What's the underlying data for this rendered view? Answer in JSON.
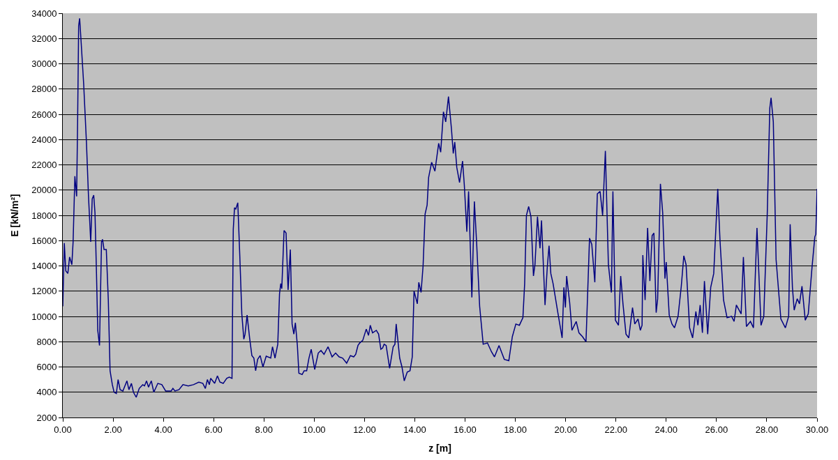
{
  "chart_data": {
    "type": "line",
    "xlabel": "z [m]",
    "ylabel": "E [kN/m²]",
    "xlim": [
      0,
      30
    ],
    "xticks": [
      {
        "value": 0,
        "label": "0.00"
      },
      {
        "value": 2,
        "label": "2.00"
      },
      {
        "value": 4,
        "label": "4.00"
      },
      {
        "value": 6,
        "label": "6.00"
      },
      {
        "value": 8,
        "label": "8.00"
      },
      {
        "value": 10,
        "label": "10.00"
      },
      {
        "value": 12,
        "label": "12.00"
      },
      {
        "value": 14,
        "label": "14.00"
      },
      {
        "value": 16,
        "label": "16.00"
      },
      {
        "value": 18,
        "label": "18.00"
      },
      {
        "value": 20,
        "label": "20.00"
      },
      {
        "value": 22,
        "label": "22.00"
      },
      {
        "value": 24,
        "label": "24.00"
      },
      {
        "value": 26,
        "label": "26.00"
      },
      {
        "value": 28,
        "label": "28.00"
      },
      {
        "value": 30,
        "label": "30.00"
      }
    ],
    "ylim": [
      2000,
      34000
    ],
    "yticks": [
      2000,
      4000,
      6000,
      8000,
      10000,
      12000,
      14000,
      16000,
      18000,
      20000,
      22000,
      24000,
      26000,
      28000,
      30000,
      32000,
      34000
    ],
    "grid": "y",
    "marker": "none",
    "line_style": "solid",
    "series": [
      {
        "color": "#000080",
        "x": [
          0,
          0.06,
          0.12,
          0.2,
          0.27,
          0.36,
          0.41,
          0.48,
          0.55,
          0.59,
          0.63,
          0.67,
          0.73,
          0.83,
          0.94,
          1.02,
          1.11,
          1.17,
          1.23,
          1.28,
          1.34,
          1.39,
          1.46,
          1.54,
          1.58,
          1.64,
          1.73,
          1.81,
          1.88,
          1.97,
          2.04,
          2.13,
          2.2,
          2.28,
          2.39,
          2.55,
          2.63,
          2.73,
          2.81,
          2.92,
          3.04,
          3.18,
          3.25,
          3.33,
          3.41,
          3.52,
          3.62,
          3.78,
          3.94,
          4.09,
          4.31,
          4.38,
          4.46,
          4.62,
          4.78,
          4.99,
          5.2,
          5.41,
          5.57,
          5.67,
          5.75,
          5.83,
          5.88,
          6.04,
          6.15,
          6.25,
          6.38,
          6.52,
          6.62,
          6.73,
          6.78,
          6.83,
          6.88,
          6.96,
          7.04,
          7.12,
          7.2,
          7.25,
          7.33,
          7.43,
          7.52,
          7.6,
          7.67,
          7.75,
          7.85,
          7.96,
          8.09,
          8.27,
          8.34,
          8.44,
          8.55,
          8.62,
          8.67,
          8.71,
          8.8,
          8.88,
          8.96,
          9.05,
          9.12,
          9.19,
          9.25,
          9.33,
          9.39,
          9.52,
          9.6,
          9.7,
          9.79,
          9.88,
          10.02,
          10.16,
          10.27,
          10.39,
          10.55,
          10.71,
          10.85,
          10.99,
          11.13,
          11.29,
          11.44,
          11.57,
          11.65,
          11.74,
          11.81,
          11.93,
          12.07,
          12.16,
          12.23,
          12.32,
          12.47,
          12.56,
          12.65,
          12.72,
          12.78,
          12.86,
          13.0,
          13.14,
          13.21,
          13.26,
          13.4,
          13.49,
          13.58,
          13.7,
          13.81,
          13.9,
          13.97,
          14.05,
          14.1,
          14.16,
          14.25,
          14.33,
          14.41,
          14.49,
          14.55,
          14.67,
          14.8,
          14.95,
          15.03,
          15.14,
          15.23,
          15.34,
          15.46,
          15.53,
          15.59,
          15.67,
          15.78,
          15.9,
          15.97,
          16.07,
          16.14,
          16.27,
          16.37,
          16.46,
          16.58,
          16.72,
          16.89,
          17.05,
          17.17,
          17.35,
          17.56,
          17.74,
          17.88,
          18.02,
          18.16,
          18.3,
          18.37,
          18.44,
          18.53,
          18.62,
          18.72,
          18.78,
          18.88,
          18.98,
          19.04,
          19.18,
          19.27,
          19.34,
          19.41,
          19.5,
          19.69,
          19.86,
          19.93,
          19.99,
          20.04,
          20.16,
          20.25,
          20.42,
          20.53,
          20.67,
          20.81,
          20.95,
          21.04,
          21.16,
          21.26,
          21.37,
          21.47,
          21.58,
          21.7,
          21.82,
          21.88,
          21.98,
          22.1,
          22.19,
          22.28,
          22.4,
          22.51,
          22.66,
          22.75,
          22.88,
          22.97,
          23.04,
          23.07,
          23.16,
          23.26,
          23.35,
          23.44,
          23.51,
          23.6,
          23.66,
          23.77,
          23.86,
          23.95,
          24.0,
          24.12,
          24.23,
          24.33,
          24.47,
          24.6,
          24.7,
          24.79,
          24.93,
          25.05,
          25.18,
          25.26,
          25.35,
          25.44,
          25.52,
          25.65,
          25.77,
          25.89,
          26.05,
          26.14,
          26.28,
          26.42,
          26.6,
          26.7,
          26.79,
          26.98,
          27.07,
          27.19,
          27.35,
          27.47,
          27.61,
          27.77,
          27.88,
          28.02,
          28.12,
          28.17,
          28.26,
          28.37,
          28.56,
          28.74,
          28.87,
          28.93,
          29.02,
          29.09,
          29.21,
          29.3,
          29.4,
          29.53,
          29.65,
          29.8,
          29.91,
          29.95,
          30.0
        ],
        "values": [
          10800,
          15800,
          13600,
          13400,
          14700,
          14100,
          15900,
          21100,
          19500,
          25500,
          33000,
          33600,
          31700,
          28400,
          23800,
          19600,
          15900,
          19300,
          19600,
          18200,
          13400,
          8900,
          7700,
          15900,
          16100,
          15300,
          15300,
          11300,
          5700,
          4600,
          4000,
          3900,
          5000,
          4200,
          4100,
          4900,
          4200,
          4700,
          4000,
          3600,
          4300,
          4600,
          4500,
          4900,
          4400,
          4900,
          4000,
          4700,
          4600,
          4100,
          4100,
          4300,
          4100,
          4200,
          4600,
          4500,
          4600,
          4800,
          4700,
          4300,
          5000,
          4600,
          5100,
          4700,
          5300,
          4800,
          4700,
          5100,
          5200,
          5100,
          16900,
          18600,
          18500,
          19000,
          14800,
          10200,
          8200,
          8600,
          10100,
          8300,
          6900,
          6700,
          5700,
          6600,
          6900,
          6000,
          6850,
          6700,
          7600,
          6700,
          7800,
          11800,
          12600,
          12200,
          16800,
          16600,
          12100,
          15300,
          9400,
          8600,
          9500,
          7700,
          5500,
          5400,
          5700,
          5700,
          6700,
          7400,
          5800,
          7100,
          7300,
          7000,
          7600,
          6800,
          7100,
          6800,
          6700,
          6300,
          6900,
          6800,
          7000,
          7700,
          7900,
          8100,
          9000,
          8500,
          9300,
          8700,
          8900,
          8600,
          7400,
          7500,
          7800,
          7700,
          5900,
          7600,
          7800,
          9400,
          6700,
          6000,
          4900,
          5600,
          5700,
          6800,
          12000,
          11400,
          11000,
          12700,
          11900,
          14000,
          18100,
          18800,
          21000,
          22200,
          21500,
          23700,
          23000,
          26200,
          25400,
          27400,
          24800,
          22900,
          23800,
          21800,
          20600,
          22300,
          20400,
          16700,
          19900,
          11500,
          19100,
          15800,
          10800,
          7800,
          7900,
          7200,
          6800,
          7700,
          6600,
          6500,
          8400,
          9400,
          9300,
          9900,
          12600,
          18000,
          18700,
          17900,
          13200,
          14100,
          17900,
          15400,
          17600,
          10900,
          13900,
          15600,
          13400,
          12600,
          10300,
          8300,
          12300,
          10700,
          13200,
          11100,
          8900,
          9600,
          8700,
          8400,
          8000,
          16200,
          15700,
          12700,
          19700,
          19900,
          18000,
          23100,
          14100,
          11900,
          19900,
          9700,
          9300,
          13200,
          11000,
          8600,
          8300,
          10700,
          9400,
          9800,
          8900,
          9300,
          14850,
          11300,
          17000,
          12800,
          16400,
          16600,
          10300,
          11400,
          20500,
          18200,
          13000,
          14300,
          10100,
          9400,
          9100,
          10000,
          12400,
          14800,
          14100,
          9100,
          8300,
          10400,
          9300,
          10900,
          8700,
          12800,
          8600,
          12300,
          13400,
          20100,
          16000,
          11300,
          9900,
          10000,
          9600,
          10900,
          10200,
          14700,
          9200,
          9600,
          9100,
          17000,
          9300,
          10000,
          18200,
          26500,
          27300,
          25400,
          14500,
          9800,
          9100,
          10000,
          17300,
          12300,
          10500,
          11400,
          11000,
          12400,
          9700,
          10200,
          13900,
          16300,
          16500,
          20100
        ]
      }
    ]
  }
}
